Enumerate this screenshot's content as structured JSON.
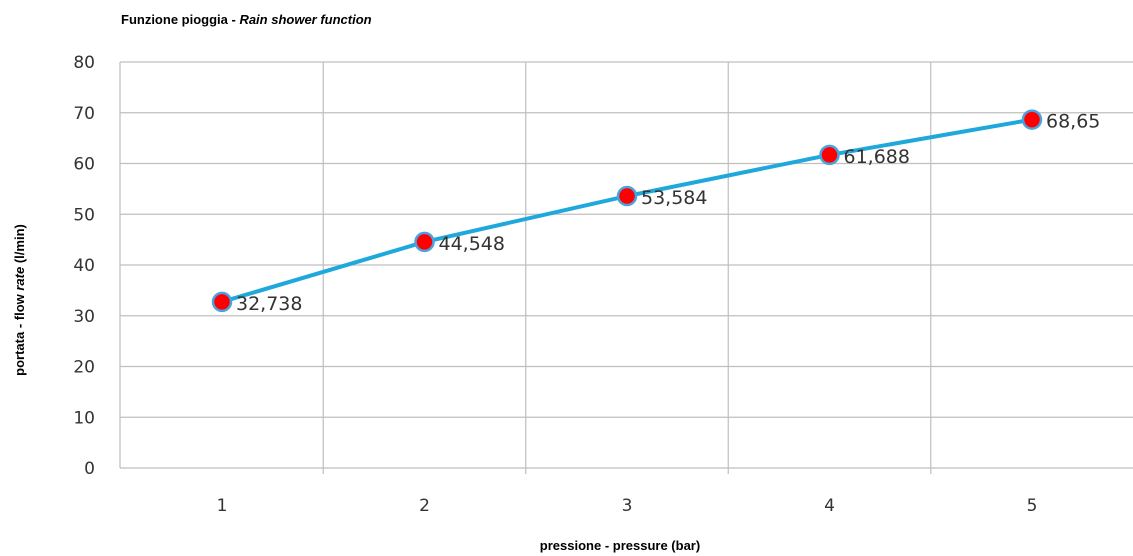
{
  "chart_data": {
    "type": "line",
    "title_main": "Funzione pioggia - ",
    "title_italic": "Rain shower function",
    "xlabel": "pressione - pressure  (bar)",
    "ylabel_pre": "portata - flow ",
    "ylabel_italic": "rate",
    "ylabel_post": " (l/min)",
    "x": [
      1,
      2,
      3,
      4,
      5
    ],
    "x_tick_labels": [
      "1",
      "2",
      "3",
      "4",
      "5"
    ],
    "y_ticks": [
      0,
      10,
      20,
      30,
      40,
      50,
      60,
      70,
      80
    ],
    "ylim": [
      0,
      80
    ],
    "series": [
      {
        "values": [
          32.738,
          44.548,
          53.584,
          61.688,
          68.65
        ],
        "labels": [
          "32,738",
          "44,548",
          "53,584",
          "61,688",
          "68,65"
        ],
        "line_color": "#1fa8dc",
        "marker_color": "#ff0000",
        "marker_edge_color": "#4aa3df"
      }
    ],
    "grid": true,
    "grid_color": "#bfbfbf"
  }
}
